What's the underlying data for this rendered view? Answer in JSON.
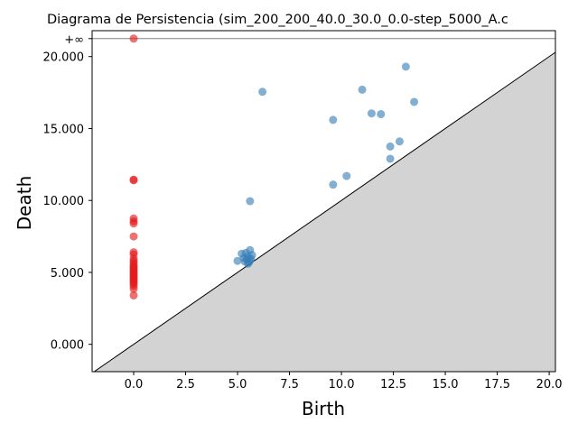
{
  "chart_data": {
    "type": "scatter",
    "title": "Diagrama de Persistencia (sim_200_200_40.0_30.0_0.0-step_5000_A.c",
    "xlabel": "Birth",
    "ylabel": "Death",
    "xlim": [
      -2.0,
      20.3
    ],
    "ylim": [
      -1.9,
      21.8
    ],
    "x_ticks": [
      {
        "value": 0.0,
        "label": "0.0"
      },
      {
        "value": 2.5,
        "label": "2.5"
      },
      {
        "value": 5.0,
        "label": "5.0"
      },
      {
        "value": 7.5,
        "label": "7.5"
      },
      {
        "value": 10.0,
        "label": "10.0"
      },
      {
        "value": 12.5,
        "label": "12.5"
      },
      {
        "value": 15.0,
        "label": "15.0"
      },
      {
        "value": 17.5,
        "label": "17.5"
      },
      {
        "value": 20.0,
        "label": "20.0"
      }
    ],
    "y_ticks": [
      {
        "value": 0.0,
        "label": "0.000"
      },
      {
        "value": 5.0,
        "label": "5.000"
      },
      {
        "value": 10.0,
        "label": "10.000"
      },
      {
        "value": 15.0,
        "label": "15.000"
      },
      {
        "value": 20.0,
        "label": "20.000"
      }
    ],
    "infinity": {
      "value": 21.25,
      "label": "+∞"
    },
    "diagonal": true,
    "colors": {
      "h0": "#e41a1c",
      "h1": "#377eb8",
      "region": "#d3d3d3",
      "infinity_line": "#808080"
    },
    "series": [
      {
        "color": "#e41a1c",
        "points": [
          [
            0.0,
            21.25
          ],
          [
            0.0,
            11.45
          ],
          [
            0.0,
            11.4
          ],
          [
            0.0,
            8.75
          ],
          [
            0.0,
            8.55
          ],
          [
            0.0,
            8.4
          ],
          [
            0.0,
            7.5
          ],
          [
            0.0,
            6.4
          ],
          [
            0.0,
            6.25
          ],
          [
            0.0,
            5.95
          ],
          [
            0.0,
            5.8
          ],
          [
            0.0,
            5.65
          ],
          [
            0.0,
            5.5
          ],
          [
            0.0,
            5.4
          ],
          [
            0.0,
            5.3
          ],
          [
            0.0,
            5.2
          ],
          [
            0.0,
            5.1
          ],
          [
            0.0,
            5.0
          ],
          [
            0.0,
            4.9
          ],
          [
            0.0,
            4.8
          ],
          [
            0.0,
            4.7
          ],
          [
            0.0,
            4.6
          ],
          [
            0.0,
            4.5
          ],
          [
            0.0,
            4.4
          ],
          [
            0.0,
            4.3
          ],
          [
            0.0,
            4.2
          ],
          [
            0.0,
            4.05
          ],
          [
            0.0,
            3.85
          ],
          [
            0.0,
            3.4
          ]
        ]
      },
      {
        "color": "#377eb8",
        "points": [
          [
            13.1,
            19.3
          ],
          [
            11.0,
            17.7
          ],
          [
            6.2,
            17.55
          ],
          [
            13.5,
            16.85
          ],
          [
            11.45,
            16.05
          ],
          [
            11.9,
            16.0
          ],
          [
            9.6,
            15.6
          ],
          [
            12.8,
            14.1
          ],
          [
            12.35,
            13.75
          ],
          [
            12.35,
            12.9
          ],
          [
            10.25,
            11.7
          ],
          [
            9.6,
            11.1
          ],
          [
            5.6,
            9.95
          ],
          [
            5.6,
            6.55
          ],
          [
            5.2,
            6.3
          ],
          [
            5.4,
            6.35
          ],
          [
            5.7,
            6.2
          ],
          [
            5.5,
            6.1
          ],
          [
            5.3,
            6.0
          ],
          [
            5.65,
            5.95
          ],
          [
            5.45,
            5.9
          ],
          [
            5.6,
            5.85
          ],
          [
            5.0,
            5.8
          ],
          [
            5.35,
            5.75
          ],
          [
            5.55,
            5.7
          ],
          [
            5.5,
            5.6
          ]
        ]
      }
    ]
  }
}
